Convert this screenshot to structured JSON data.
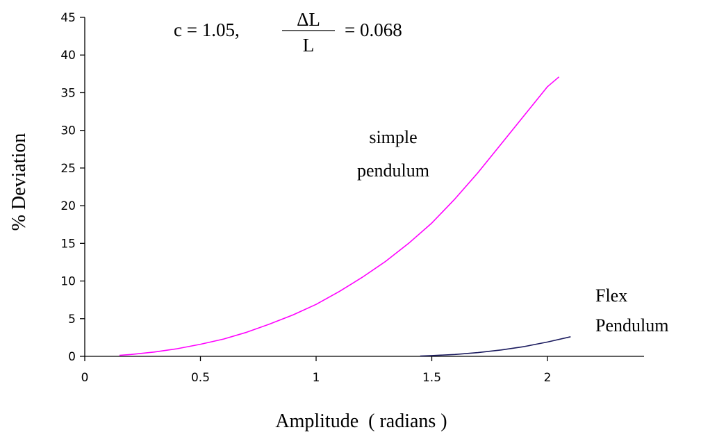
{
  "chart_data": {
    "type": "line",
    "xlabel": "Amplitude  ( radians )",
    "ylabel": "% Deviation",
    "xlim": [
      0,
      2.4
    ],
    "ylim": [
      0,
      45
    ],
    "x_ticks": [
      0,
      0.5,
      1,
      1.5,
      2
    ],
    "x_tick_labels": [
      "0",
      "0.5",
      "1",
      "1.5",
      "2"
    ],
    "y_ticks": [
      0,
      5,
      10,
      15,
      20,
      25,
      30,
      35,
      40,
      45
    ],
    "y_tick_labels": [
      "0",
      "5",
      "10",
      "15",
      "20",
      "25",
      "30",
      "35",
      "40",
      "45"
    ],
    "grid": false,
    "annotation": {
      "c_text": "c = 1.05,",
      "frac_numerator": "ΔL",
      "frac_denominator": "L",
      "equals_text": "= 0.068"
    },
    "series": [
      {
        "name": "simple pendulum",
        "label_lines": [
          "simple",
          "pendulum"
        ],
        "color": "#ff00ff",
        "x": [
          0.15,
          0.2,
          0.3,
          0.4,
          0.5,
          0.6,
          0.7,
          0.8,
          0.9,
          1.0,
          1.1,
          1.2,
          1.3,
          1.4,
          1.5,
          1.6,
          1.7,
          1.8,
          1.9,
          2.0,
          2.05
        ],
        "y": [
          0.14,
          0.25,
          0.57,
          1.01,
          1.6,
          2.3,
          3.2,
          4.3,
          5.5,
          6.9,
          8.6,
          10.5,
          12.6,
          15.0,
          17.7,
          20.9,
          24.4,
          28.2,
          32.0,
          35.8,
          37.1
        ]
      },
      {
        "name": "Flex Pendulum",
        "label_lines": [
          "Flex",
          "Pendulum"
        ],
        "color": "#1a1a5e",
        "x": [
          1.45,
          1.5,
          1.6,
          1.7,
          1.8,
          1.9,
          2.0,
          2.1
        ],
        "y": [
          0.05,
          0.1,
          0.25,
          0.5,
          0.85,
          1.3,
          1.9,
          2.6
        ]
      }
    ]
  }
}
